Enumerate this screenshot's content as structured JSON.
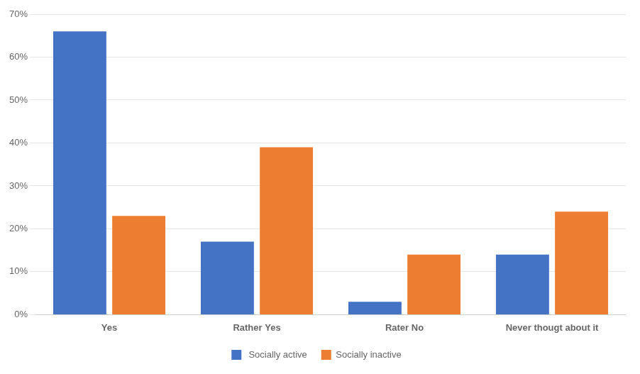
{
  "chart_data": {
    "type": "bar",
    "categories": [
      "Yes",
      "Rather Yes",
      "Rater No",
      "Never thougt about it"
    ],
    "series": [
      {
        "name": " Socially active",
        "color": "#4472C4",
        "values": [
          66,
          17,
          3,
          14
        ]
      },
      {
        "name": "Socially inactive",
        "color": "#ED7D31",
        "values": [
          23,
          39,
          14,
          24
        ]
      }
    ],
    "ylim": [
      0,
      70
    ],
    "yticks": [
      {
        "value": 0,
        "label": "0%"
      },
      {
        "value": 10,
        "label": "10%"
      },
      {
        "value": 20,
        "label": "20%"
      },
      {
        "value": 30,
        "label": "30%"
      },
      {
        "value": 40,
        "label": "40%"
      },
      {
        "value": 50,
        "label": "50%"
      },
      {
        "value": 60,
        "label": "60%"
      },
      {
        "value": 70,
        "label": "70%"
      }
    ],
    "grid": true,
    "legend": "bottom"
  }
}
